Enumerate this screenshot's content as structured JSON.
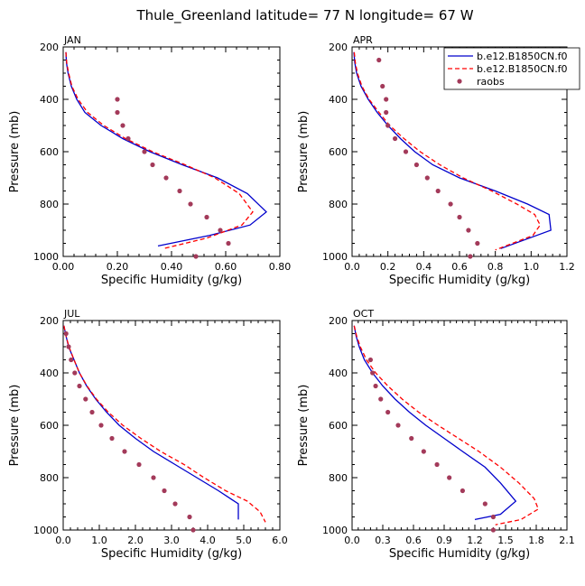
{
  "figure": {
    "title": "Thule_Greenland  latitude= 77 N longitude= 67 W"
  },
  "legend": {
    "placement": "top-right",
    "entries": [
      {
        "label": "b.e12.B1850CN.f0",
        "color": "#0000cc",
        "style": "solid"
      },
      {
        "label": "b.e12.B1850CN.f0",
        "color": "#ff0000",
        "style": "dashed"
      },
      {
        "label": "raobs",
        "color": "#a33a5a",
        "style": "dot"
      }
    ]
  },
  "colors": {
    "model1": "#0000cc",
    "model2": "#ff0000",
    "raobs": "#a33a5a"
  },
  "chart_data": [
    {
      "type": "line",
      "panel": "JAN",
      "xlabel": "Specific Humidity (g/kg)",
      "ylabel": "Pressure (mb)",
      "xlim": [
        0,
        0.8
      ],
      "ylim": [
        200,
        1000
      ],
      "y_reversed": true,
      "xticks": [
        "0.00",
        "0.20",
        "0.40",
        "0.60",
        "0.80"
      ],
      "xtick_values": [
        0,
        0.2,
        0.4,
        0.6,
        0.8
      ],
      "yticks": [
        "200",
        "400",
        "600",
        "800",
        "1000"
      ],
      "ytick_values": [
        200,
        400,
        600,
        800,
        1000
      ],
      "series": [
        {
          "name": "b.e12.B1850CN.f0",
          "style": "solid",
          "points": [
            [
              0.01,
              220
            ],
            [
              0.012,
              260
            ],
            [
              0.018,
              300
            ],
            [
              0.03,
              350
            ],
            [
              0.05,
              400
            ],
            [
              0.08,
              450
            ],
            [
              0.14,
              500
            ],
            [
              0.22,
              550
            ],
            [
              0.32,
              600
            ],
            [
              0.44,
              650
            ],
            [
              0.57,
              700
            ],
            [
              0.68,
              760
            ],
            [
              0.75,
              830
            ],
            [
              0.69,
              880
            ],
            [
              0.54,
              920
            ],
            [
              0.35,
              960
            ]
          ]
        },
        {
          "name": "b.e12.B1850CN.f0",
          "style": "dashed",
          "points": [
            [
              0.01,
              220
            ],
            [
              0.013,
              260
            ],
            [
              0.02,
              300
            ],
            [
              0.032,
              350
            ],
            [
              0.055,
              400
            ],
            [
              0.09,
              450
            ],
            [
              0.15,
              500
            ],
            [
              0.23,
              550
            ],
            [
              0.33,
              600
            ],
            [
              0.45,
              650
            ],
            [
              0.56,
              700
            ],
            [
              0.65,
              760
            ],
            [
              0.7,
              830
            ],
            [
              0.66,
              880
            ],
            [
              0.53,
              930
            ],
            [
              0.37,
              970
            ]
          ]
        },
        {
          "name": "raobs",
          "style": "dot",
          "points": [
            [
              0.2,
              400
            ],
            [
              0.2,
              450
            ],
            [
              0.22,
              500
            ],
            [
              0.24,
              550
            ],
            [
              0.3,
              600
            ],
            [
              0.33,
              650
            ],
            [
              0.38,
              700
            ],
            [
              0.43,
              750
            ],
            [
              0.47,
              800
            ],
            [
              0.53,
              850
            ],
            [
              0.58,
              900
            ],
            [
              0.61,
              950
            ],
            [
              0.49,
              1000
            ]
          ]
        }
      ]
    },
    {
      "type": "line",
      "panel": "APR",
      "xlabel": "Specific Humidity (g/kg)",
      "ylabel": "Pressure (mb)",
      "xlim": [
        0,
        1.2
      ],
      "ylim": [
        200,
        1000
      ],
      "y_reversed": true,
      "xticks": [
        "0.0",
        "0.2",
        "0.4",
        "0.6",
        "0.8",
        "1.0",
        "1.2"
      ],
      "xtick_values": [
        0,
        0.2,
        0.4,
        0.6,
        0.8,
        1.0,
        1.2
      ],
      "yticks": [
        "200",
        "400",
        "600",
        "800",
        "1000"
      ],
      "ytick_values": [
        200,
        400,
        600,
        800,
        1000
      ],
      "series": [
        {
          "name": "b.e12.B1850CN.f0",
          "style": "solid",
          "points": [
            [
              0.01,
              220
            ],
            [
              0.015,
              260
            ],
            [
              0.025,
              300
            ],
            [
              0.05,
              350
            ],
            [
              0.09,
              400
            ],
            [
              0.14,
              450
            ],
            [
              0.2,
              500
            ],
            [
              0.27,
              550
            ],
            [
              0.35,
              600
            ],
            [
              0.45,
              650
            ],
            [
              0.6,
              700
            ],
            [
              0.8,
              750
            ],
            [
              0.98,
              800
            ],
            [
              1.1,
              840
            ],
            [
              1.11,
              900
            ],
            [
              0.83,
              970
            ]
          ]
        },
        {
          "name": "b.e12.B1850CN.f0",
          "style": "dashed",
          "points": [
            [
              0.012,
              220
            ],
            [
              0.018,
              260
            ],
            [
              0.03,
              300
            ],
            [
              0.055,
              350
            ],
            [
              0.095,
              400
            ],
            [
              0.15,
              450
            ],
            [
              0.21,
              500
            ],
            [
              0.29,
              550
            ],
            [
              0.38,
              600
            ],
            [
              0.49,
              650
            ],
            [
              0.62,
              700
            ],
            [
              0.78,
              750
            ],
            [
              0.92,
              800
            ],
            [
              1.02,
              840
            ],
            [
              1.05,
              880
            ],
            [
              1.01,
              920
            ],
            [
              0.8,
              975
            ]
          ]
        },
        {
          "name": "raobs",
          "style": "dot",
          "points": [
            [
              0.15,
              250
            ],
            [
              0.17,
              350
            ],
            [
              0.19,
              400
            ],
            [
              0.19,
              450
            ],
            [
              0.2,
              500
            ],
            [
              0.24,
              550
            ],
            [
              0.3,
              600
            ],
            [
              0.36,
              650
            ],
            [
              0.42,
              700
            ],
            [
              0.48,
              750
            ],
            [
              0.55,
              800
            ],
            [
              0.6,
              850
            ],
            [
              0.65,
              900
            ],
            [
              0.7,
              950
            ],
            [
              0.66,
              1000
            ]
          ]
        }
      ]
    },
    {
      "type": "line",
      "panel": "JUL",
      "xlabel": "Specific Humidity (g/kg)",
      "ylabel": "Pressure (mb)",
      "xlim": [
        0,
        6.0
      ],
      "ylim": [
        200,
        1000
      ],
      "y_reversed": true,
      "xticks": [
        "0.0",
        "1.0",
        "2.0",
        "3.0",
        "4.0",
        "5.0",
        "6.0"
      ],
      "xtick_values": [
        0,
        1,
        2,
        3,
        4,
        5,
        6
      ],
      "yticks": [
        "200",
        "400",
        "600",
        "800",
        "1000"
      ],
      "ytick_values": [
        200,
        400,
        600,
        800,
        1000
      ],
      "series": [
        {
          "name": "b.e12.B1850CN.f0",
          "style": "solid",
          "points": [
            [
              0.02,
              220
            ],
            [
              0.08,
              260
            ],
            [
              0.15,
              300
            ],
            [
              0.3,
              350
            ],
            [
              0.45,
              400
            ],
            [
              0.65,
              450
            ],
            [
              0.9,
              500
            ],
            [
              1.2,
              550
            ],
            [
              1.55,
              600
            ],
            [
              2.0,
              650
            ],
            [
              2.5,
              700
            ],
            [
              3.1,
              750
            ],
            [
              3.7,
              800
            ],
            [
              4.3,
              850
            ],
            [
              4.85,
              900
            ],
            [
              4.85,
              960
            ]
          ]
        },
        {
          "name": "b.e12.B1850CN.f0",
          "style": "dashed",
          "points": [
            [
              0.02,
              220
            ],
            [
              0.08,
              260
            ],
            [
              0.16,
              300
            ],
            [
              0.3,
              350
            ],
            [
              0.45,
              400
            ],
            [
              0.66,
              450
            ],
            [
              0.92,
              500
            ],
            [
              1.25,
              550
            ],
            [
              1.65,
              600
            ],
            [
              2.15,
              650
            ],
            [
              2.7,
              700
            ],
            [
              3.35,
              750
            ],
            [
              3.9,
              800
            ],
            [
              4.5,
              850
            ],
            [
              5.1,
              890
            ],
            [
              5.45,
              930
            ],
            [
              5.6,
              970
            ]
          ]
        },
        {
          "name": "raobs",
          "style": "dot",
          "points": [
            [
              0.08,
              250
            ],
            [
              0.15,
              300
            ],
            [
              0.22,
              350
            ],
            [
              0.32,
              400
            ],
            [
              0.45,
              450
            ],
            [
              0.62,
              500
            ],
            [
              0.8,
              550
            ],
            [
              1.05,
              600
            ],
            [
              1.35,
              650
            ],
            [
              1.7,
              700
            ],
            [
              2.1,
              750
            ],
            [
              2.5,
              800
            ],
            [
              2.8,
              850
            ],
            [
              3.1,
              900
            ],
            [
              3.5,
              950
            ],
            [
              3.6,
              1000
            ]
          ]
        }
      ]
    },
    {
      "type": "line",
      "panel": "OCT",
      "xlabel": "Specific Humidity (g/kg)",
      "ylabel": "Pressure (mb)",
      "xlim": [
        0,
        2.1
      ],
      "ylim": [
        200,
        1000
      ],
      "y_reversed": true,
      "xticks": [
        "0.0",
        "0.3",
        "0.6",
        "0.9",
        "1.2",
        "1.5",
        "1.8",
        "2.1"
      ],
      "xtick_values": [
        0,
        0.3,
        0.6,
        0.9,
        1.2,
        1.5,
        1.8,
        2.1
      ],
      "yticks": [
        "200",
        "400",
        "600",
        "800",
        "1000"
      ],
      "ytick_values": [
        200,
        400,
        600,
        800,
        1000
      ],
      "series": [
        {
          "name": "b.e12.B1850CN.f0",
          "style": "solid",
          "points": [
            [
              0.02,
              220
            ],
            [
              0.04,
              260
            ],
            [
              0.07,
              300
            ],
            [
              0.12,
              350
            ],
            [
              0.2,
              400
            ],
            [
              0.3,
              450
            ],
            [
              0.42,
              500
            ],
            [
              0.56,
              550
            ],
            [
              0.72,
              600
            ],
            [
              0.9,
              650
            ],
            [
              1.08,
              700
            ],
            [
              1.3,
              760
            ],
            [
              1.45,
              820
            ],
            [
              1.6,
              890
            ],
            [
              1.45,
              940
            ],
            [
              1.2,
              960
            ]
          ]
        },
        {
          "name": "b.e12.B1850CN.f0",
          "style": "dashed",
          "points": [
            [
              0.02,
              220
            ],
            [
              0.045,
              260
            ],
            [
              0.08,
              300
            ],
            [
              0.14,
              350
            ],
            [
              0.23,
              400
            ],
            [
              0.35,
              450
            ],
            [
              0.49,
              500
            ],
            [
              0.65,
              550
            ],
            [
              0.84,
              600
            ],
            [
              1.04,
              650
            ],
            [
              1.24,
              700
            ],
            [
              1.45,
              760
            ],
            [
              1.63,
              820
            ],
            [
              1.78,
              880
            ],
            [
              1.82,
              920
            ],
            [
              1.65,
              960
            ],
            [
              1.4,
              980
            ]
          ]
        },
        {
          "name": "raobs",
          "style": "dot",
          "points": [
            [
              0.18,
              350
            ],
            [
              0.2,
              400
            ],
            [
              0.23,
              450
            ],
            [
              0.28,
              500
            ],
            [
              0.35,
              550
            ],
            [
              0.45,
              600
            ],
            [
              0.58,
              650
            ],
            [
              0.7,
              700
            ],
            [
              0.83,
              750
            ],
            [
              0.95,
              800
            ],
            [
              1.08,
              850
            ],
            [
              1.3,
              900
            ],
            [
              1.38,
              950
            ],
            [
              1.38,
              1000
            ]
          ]
        }
      ]
    }
  ]
}
